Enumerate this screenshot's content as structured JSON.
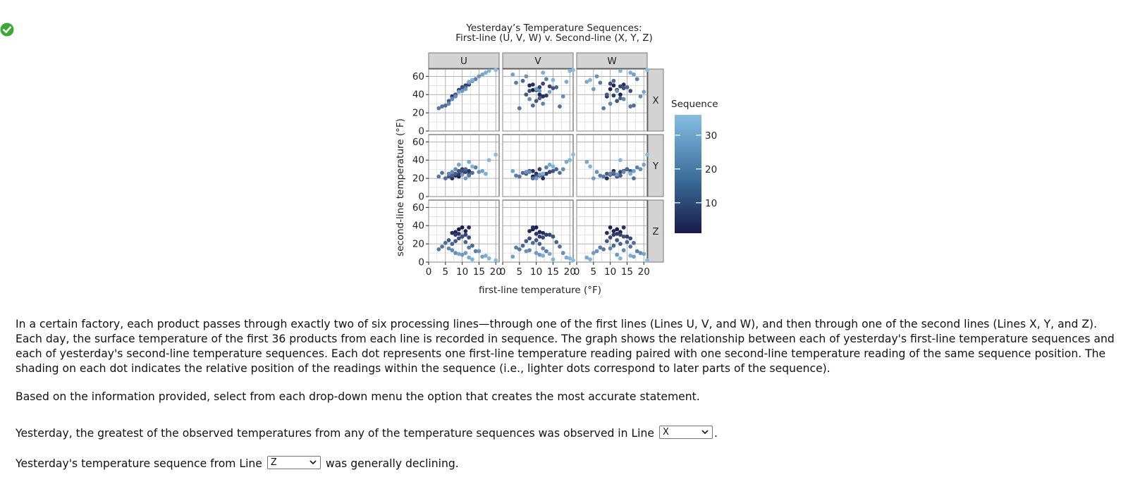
{
  "status": {
    "icon": "check-circle-icon",
    "color": "#3aaa35"
  },
  "text": {
    "intro": "In a certain factory, each product passes through exactly two of six processing lines—through one of the first lines (Lines U, V, and W), and then through one of the second lines (Lines X, Y, and Z). Each day, the surface temperature of the first 36 products from each line is recorded in sequence. The graph shows the relationship between each of yesterday's first-line temperature sequences and each of yesterday's second-line temperature sequences. Each dot represents one first-line temperature reading paired with one second-line temperature reading of the same sequence position. The shading on each dot indicates the relative position of the readings within the sequence (i.e., lighter dots correspond to later parts of the sequence).",
    "instruction": "Based on the information provided, select from each drop-down menu the option that creates the most accurate statement.",
    "q1_before": "Yesterday, the greatest of the observed temperatures from any of the temperature sequences was observed in Line",
    "q1_after": ".",
    "q1_value": "X",
    "q2_before": "Yesterday's temperature sequence from Line",
    "q2_after": "was generally declining.",
    "q2_value": "Z"
  },
  "chart_data": {
    "type": "scatter",
    "title": "Yesterday’s Temperature Sequences:",
    "subtitle": "First-line (U, V, W) v. Second-line (X, Y, Z)",
    "xlabel": "first-line temperature (°F)",
    "ylabel": "second-line temperature (°F)",
    "xlim": [
      0,
      21
    ],
    "ylim": [
      0,
      68
    ],
    "xticks": [
      "0",
      "5",
      "10",
      "15",
      "20"
    ],
    "yticks": [
      "0",
      "20",
      "40",
      "60"
    ],
    "col_facets": [
      "U",
      "V",
      "W"
    ],
    "row_facets": [
      "X",
      "Y",
      "Z"
    ],
    "legend": {
      "title": "Sequence",
      "ticks": [
        "10",
        "20",
        "30"
      ],
      "range": [
        1,
        36
      ],
      "color_low": "#1a1a4a",
      "color_high": "#85bde3",
      "placement": "right"
    },
    "grid": true,
    "sequence": [
      1,
      2,
      3,
      4,
      5,
      6,
      7,
      8,
      9,
      10,
      11,
      12,
      13,
      14,
      15,
      16,
      17,
      18,
      19,
      20,
      21,
      22,
      23,
      24,
      25,
      26,
      27,
      28,
      29,
      30,
      31,
      32,
      33,
      34,
      35,
      36
    ],
    "line_values": {
      "U": [
        9,
        10,
        8,
        11,
        7,
        12,
        9,
        8,
        10,
        11,
        12,
        9,
        10,
        6,
        8,
        7,
        11,
        13,
        5,
        4,
        3,
        12,
        14,
        6,
        7,
        8,
        15,
        10,
        11,
        16,
        9,
        12,
        17,
        13,
        18,
        20
      ],
      "V": [
        9,
        10,
        11,
        8,
        12,
        9,
        10,
        13,
        11,
        14,
        12,
        8,
        15,
        10,
        7,
        11,
        16,
        6,
        9,
        17,
        5,
        4,
        13,
        12,
        8,
        18,
        7,
        11,
        10,
        3,
        14,
        19,
        12,
        15,
        20,
        21
      ],
      "W": [
        12,
        10,
        13,
        11,
        9,
        14,
        12,
        11,
        15,
        13,
        10,
        16,
        14,
        12,
        9,
        13,
        15,
        11,
        17,
        16,
        8,
        7,
        18,
        10,
        14,
        19,
        6,
        12,
        5,
        17,
        20,
        3,
        16,
        4,
        13,
        21
      ]
    },
    "second_values": {
      "X": [
        45,
        46,
        40,
        50,
        38,
        51,
        45,
        39,
        48,
        49,
        52,
        44,
        47,
        33,
        40,
        36,
        48,
        55,
        28,
        27,
        25,
        53,
        57,
        30,
        35,
        38,
        60,
        44,
        46,
        62,
        43,
        54,
        64,
        56,
        66,
        67
      ],
      "Y": [
        22,
        25,
        23,
        28,
        20,
        28,
        24,
        25,
        30,
        27,
        24,
        28,
        28,
        22,
        25,
        23,
        30,
        26,
        20,
        26,
        22,
        23,
        32,
        25,
        27,
        30,
        27,
        24,
        20,
        28,
        35,
        38,
        25,
        33,
        40,
        46
      ],
      "Z": [
        36,
        38,
        33,
        34,
        32,
        38,
        31,
        30,
        28,
        30,
        27,
        26,
        28,
        24,
        23,
        20,
        22,
        18,
        21,
        17,
        14,
        16,
        12,
        15,
        13,
        10,
        12,
        8,
        10,
        6,
        9,
        5,
        7,
        3,
        4,
        2
      ]
    },
    "series": [
      {
        "name": "U",
        "facet": "col"
      },
      {
        "name": "V",
        "facet": "col"
      },
      {
        "name": "W",
        "facet": "col"
      },
      {
        "name": "X",
        "facet": "row"
      },
      {
        "name": "Y",
        "facet": "row"
      },
      {
        "name": "Z",
        "facet": "row"
      }
    ]
  }
}
